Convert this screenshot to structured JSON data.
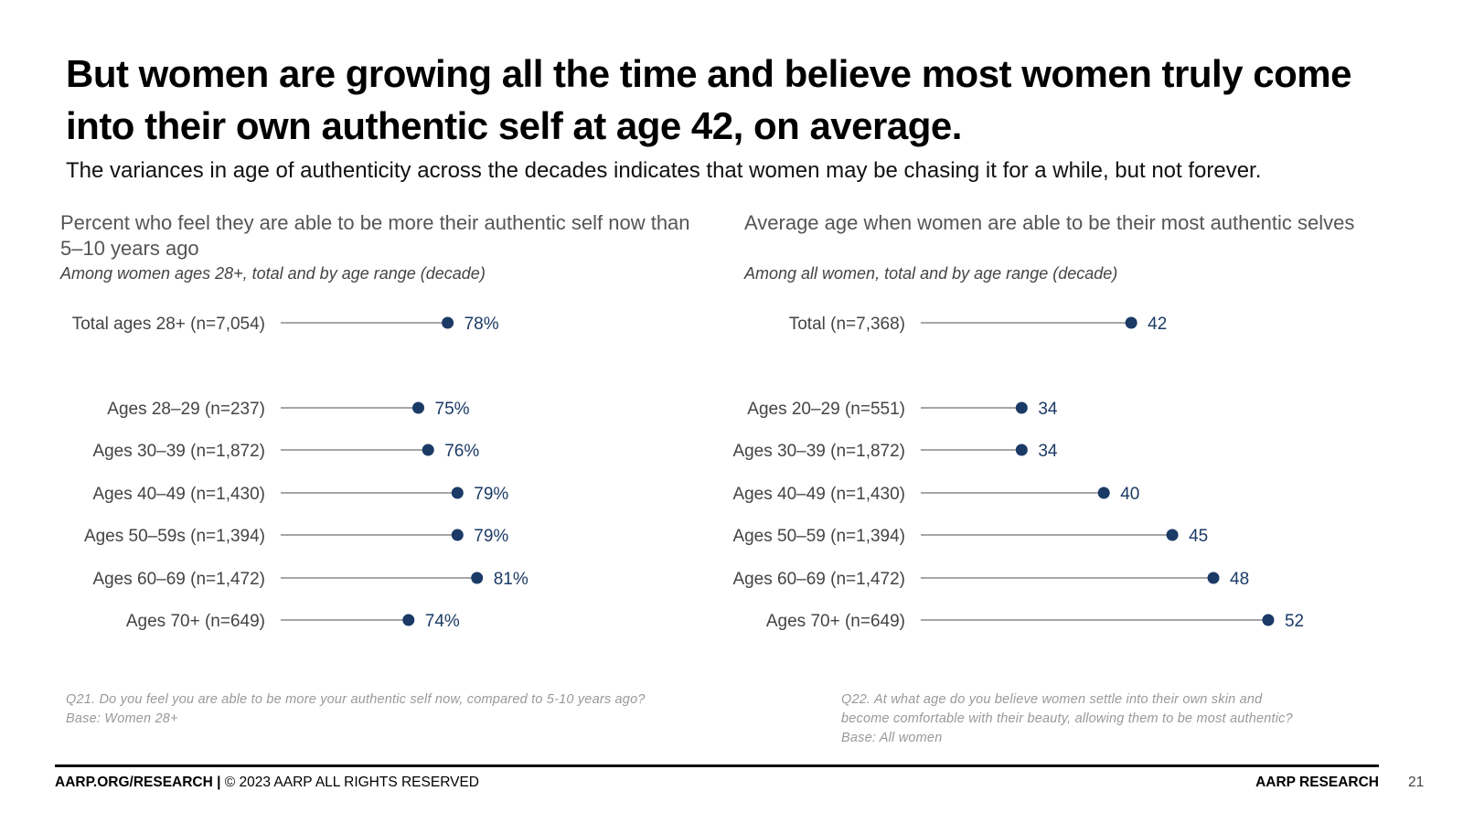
{
  "title": "But women are growing all the time and believe most women truly come into their own authentic self at age 42, on average.",
  "subtitle": "The variances in age of authenticity across the decades indicates that women may be chasing it for a while, but not forever.",
  "chart_data": [
    {
      "type": "dot",
      "title": "Percent who feel they are able to be more their authentic self now than 5–10 years ago",
      "subtitle": "Among women ages 28+, total and by age range (decade)",
      "categories": [
        "Total ages 28+ (n=7,054)",
        "Ages 28–29 (n=237)",
        "Ages 30–39 (n=1,872)",
        "Ages 40–49 (n=1,430)",
        "Ages 50–59s (n=1,394)",
        "Ages 60–69 (n=1,472)",
        "Ages 70+ (n=649)"
      ],
      "values": [
        78,
        75,
        76,
        79,
        79,
        81,
        74
      ],
      "value_labels": [
        "78%",
        "75%",
        "76%",
        "79%",
        "79%",
        "81%",
        "74%"
      ],
      "unit": "%",
      "xlim": [
        0,
        100
      ],
      "color": "#1b3a66"
    },
    {
      "type": "dot",
      "title": "Average age when women are able to be their most authentic selves",
      "subtitle": "Among all women, total and by age range (decade)",
      "categories": [
        "Total (n=7,368)",
        "Ages 20–29 (n=551)",
        "Ages 30–39 (n=1,872)",
        "Ages 40–49 (n=1,430)",
        "Ages 50–59 (n=1,394)",
        "Ages 60–69 (n=1,472)",
        "Ages 70+ (n=649)"
      ],
      "values": [
        42,
        34,
        34,
        40,
        45,
        48,
        52
      ],
      "value_labels": [
        "42",
        "34",
        "34",
        "40",
        "45",
        "48",
        "52"
      ],
      "unit": "",
      "xlim": [
        0,
        60
      ],
      "color": "#1b3a66"
    }
  ],
  "notes": {
    "left": [
      "Q21. Do you feel you are able to be more your authentic self now, compared to 5-10 years ago?",
      "Base: Women 28+"
    ],
    "right": [
      "Q22. At what age do you believe women settle into their own skin and",
      "become comfortable with their beauty, allowing them to be most authentic?",
      "Base: All women"
    ]
  },
  "footer": {
    "left_bold": "AARP.ORG/RESEARCH |",
    "left_rest": " © 2023 AARP ALL RIGHTS RESERVED",
    "right": "AARP RESEARCH",
    "page": "21"
  }
}
